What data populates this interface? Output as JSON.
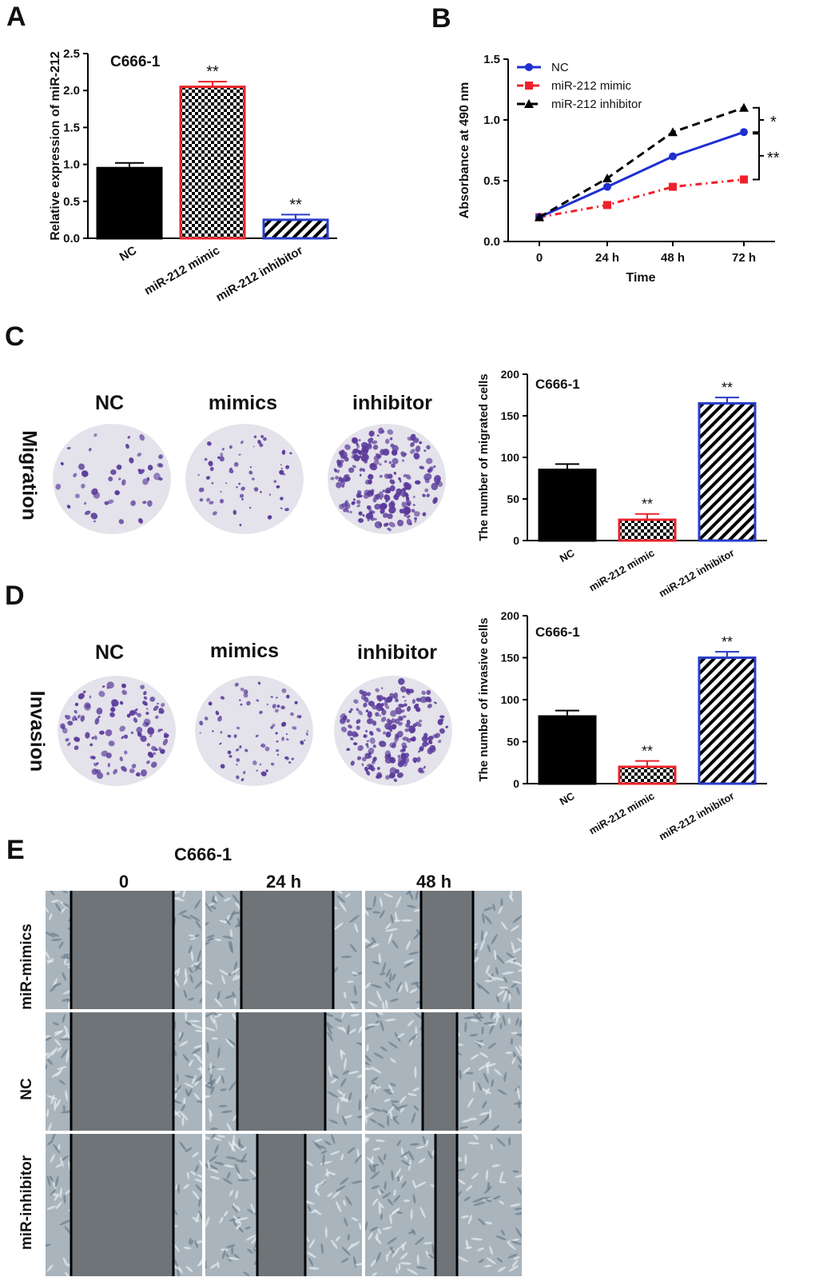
{
  "panels": {
    "a": "A",
    "b": "B",
    "c": "C",
    "d": "D",
    "e": "E"
  },
  "chart_data": [
    {
      "id": "A",
      "type": "bar",
      "title": "C666-1",
      "ylabel": "Relative expression of miR-212",
      "xlabel": "",
      "categories": [
        "NC",
        "miR-212 mimic",
        "miR-212 inhibitor"
      ],
      "values": [
        0.95,
        2.05,
        0.25
      ],
      "errors": [
        0.07,
        0.07,
        0.07
      ],
      "annotations": [
        "",
        "**",
        "**"
      ],
      "ylim": [
        0,
        2.5
      ],
      "yticks": [
        "0.0",
        "0.5",
        "1.0",
        "1.5",
        "2.0",
        "2.5"
      ],
      "styles": [
        "solid",
        "checker",
        "hatch"
      ],
      "edge_colors": [
        "#000000",
        "#e8232a",
        "#2a3cc8"
      ]
    },
    {
      "id": "B",
      "type": "line",
      "title": "",
      "xlabel": "Time",
      "ylabel": "Absorbance at 490 nm",
      "x": [
        "0",
        "24 h",
        "48 h",
        "72 h"
      ],
      "ylim": [
        0,
        1.5
      ],
      "yticks": [
        "0.0",
        "0.5",
        "1.0",
        "1.5"
      ],
      "series": [
        {
          "name": "NC",
          "values": [
            0.2,
            0.45,
            0.7,
            0.9
          ],
          "color": "#1f2fd1",
          "marker": "circle",
          "dash": ""
        },
        {
          "name": "miR-212 mimic",
          "values": [
            0.2,
            0.3,
            0.45,
            0.51
          ],
          "color": "#f0202a",
          "marker": "square",
          "dash": "8,5,2,5"
        },
        {
          "name": "miR-212 inhibitor",
          "values": [
            0.2,
            0.52,
            0.9,
            1.1
          ],
          "color": "#000000",
          "marker": "triangle",
          "dash": "10,6"
        }
      ],
      "significance": [
        "*",
        "**"
      ]
    },
    {
      "id": "C",
      "type": "bar",
      "title": "C666-1",
      "ylabel": "The number of migrated cells",
      "categories": [
        "NC",
        "miR-212 mimic",
        "miR-212 inhibitor"
      ],
      "values": [
        85,
        25,
        165
      ],
      "errors": [
        7,
        7,
        7
      ],
      "annotations": [
        "",
        "**",
        "**"
      ],
      "ylim": [
        0,
        200
      ],
      "yticks": [
        "0",
        "50",
        "100",
        "150",
        "200"
      ],
      "styles": [
        "solid",
        "checker",
        "hatch"
      ],
      "edge_colors": [
        "#000000",
        "#e8232a",
        "#2a3cc8"
      ]
    },
    {
      "id": "D",
      "type": "bar",
      "title": "C666-1",
      "ylabel": "The number of invasive cells",
      "categories": [
        "NC",
        "miR-212 mimic",
        "miR-212 inhibitor"
      ],
      "values": [
        80,
        20,
        150
      ],
      "errors": [
        7,
        7,
        7
      ],
      "annotations": [
        "",
        "**",
        "**"
      ],
      "ylim": [
        0,
        200
      ],
      "yticks": [
        "0",
        "50",
        "100",
        "150",
        "200"
      ],
      "styles": [
        "solid",
        "checker",
        "hatch"
      ],
      "edge_colors": [
        "#000000",
        "#e8232a",
        "#2a3cc8"
      ]
    }
  ],
  "migration": {
    "row_label": "Migration",
    "conditions": [
      "NC",
      "mimics",
      "inhibitor"
    ]
  },
  "invasion": {
    "row_label": "Invasion",
    "conditions": [
      "NC",
      "mimics",
      "inhibitor"
    ]
  },
  "wound": {
    "title": "C666-1",
    "times": [
      "0",
      "24 h",
      "48 h"
    ],
    "rows": [
      "miR-mimics",
      "NC",
      "miR-inhibitor"
    ]
  },
  "colors": {
    "blue": "#2a3cc8",
    "red": "#e8232a",
    "stain": "#5a3a9a",
    "dish": "#e4e2ea",
    "gap": "#6f7479",
    "cells": "#a9b4bd"
  }
}
